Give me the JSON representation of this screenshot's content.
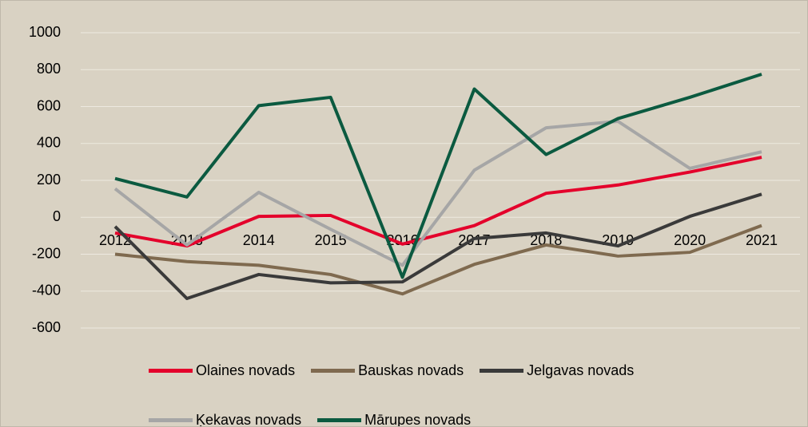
{
  "chart_data": {
    "type": "line",
    "categories": [
      "2012",
      "2013",
      "2014",
      "2015",
      "2016",
      "2017",
      "2018",
      "2019",
      "2020",
      "2021"
    ],
    "series": [
      {
        "name": "Olaines novads",
        "color": "#e4002b",
        "values": [
          -85,
          -155,
          5,
          10,
          -145,
          -45,
          130,
          175,
          245,
          325
        ]
      },
      {
        "name": "Bauskas novads",
        "color": "#7f6a4f",
        "values": [
          -200,
          -240,
          -260,
          -310,
          -415,
          -255,
          -150,
          -210,
          -190,
          -45
        ]
      },
      {
        "name": "Jelgavas novads",
        "color": "#3a3a3a",
        "values": [
          -50,
          -440,
          -310,
          -355,
          -350,
          -115,
          -85,
          -155,
          5,
          125
        ]
      },
      {
        "name": "Ķekavas novads",
        "color": "#a6a6a6",
        "values": [
          155,
          -150,
          135,
          -65,
          -260,
          255,
          485,
          520,
          265,
          355
        ]
      },
      {
        "name": "Mārupes novads",
        "color": "#0b5a40",
        "values": [
          210,
          110,
          605,
          650,
          -325,
          695,
          340,
          535,
          650,
          775
        ]
      }
    ],
    "ylim": [
      -600,
      1000
    ],
    "yticks": [
      -600,
      -400,
      -200,
      0,
      200,
      400,
      600,
      800,
      1000
    ],
    "grid": true,
    "legend": "bottom"
  }
}
